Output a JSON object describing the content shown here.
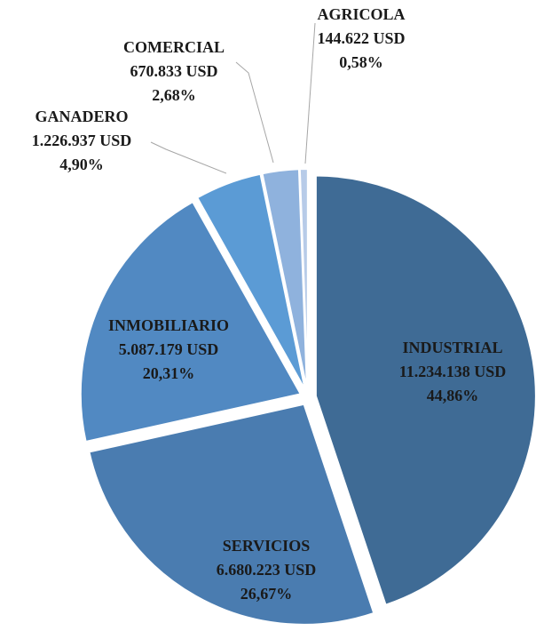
{
  "chart_data": {
    "type": "pie",
    "categories": [
      "INDUSTRIAL",
      "SERVICIOS",
      "INMOBILIARIO",
      "GANADERO",
      "COMERCIAL",
      "AGRICOLA"
    ],
    "values": [
      11234138,
      6680223,
      5087179,
      1226937,
      670833,
      144622
    ],
    "value_labels": [
      "11.234.138  USD",
      "6.680.223  USD",
      "5.087.179  USD",
      "1.226.937  USD",
      "670.833  USD",
      "144.622  USD"
    ],
    "percent_labels": [
      "44,86%",
      "26,67%",
      "20,31%",
      "4,90%",
      "2,68%",
      "0,58%"
    ],
    "colors": [
      "#3f6b95",
      "#4a7cb0",
      "#5189c2",
      "#5b9bd5",
      "#8fb2dd",
      "#b7cbe8"
    ]
  }
}
